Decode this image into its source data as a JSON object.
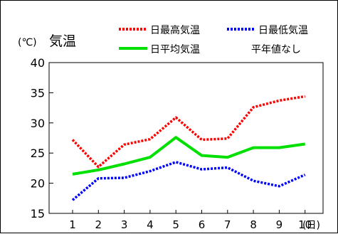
{
  "chart_data": {
    "type": "line",
    "title": "気温",
    "unit_label": "(℃)",
    "x_unit_label": "(日)",
    "categories": [
      "1",
      "2",
      "3",
      "4",
      "5",
      "6",
      "7",
      "8",
      "9",
      "10"
    ],
    "ylim": [
      15,
      40
    ],
    "y_ticks": [
      "15",
      "20",
      "25",
      "30",
      "35",
      "40"
    ],
    "grid": false,
    "legend_position": "top-right",
    "note": "平年値なし",
    "series": [
      {
        "name": "日最高気温",
        "color": "#ff0000",
        "style": "dotted",
        "values": [
          27.2,
          22.7,
          26.4,
          27.3,
          30.9,
          27.2,
          27.4,
          32.6,
          33.7,
          34.4
        ]
      },
      {
        "name": "日最低気温",
        "color": "#0000ff",
        "style": "dotted",
        "values": [
          17.2,
          20.8,
          20.9,
          22.0,
          23.5,
          22.3,
          22.6,
          20.4,
          19.5,
          21.4
        ]
      },
      {
        "name": "日平均気温",
        "color": "#00e000",
        "style": "solid",
        "values": [
          21.5,
          22.2,
          23.2,
          24.3,
          27.6,
          24.6,
          24.3,
          25.9,
          25.9,
          26.5
        ]
      }
    ]
  }
}
